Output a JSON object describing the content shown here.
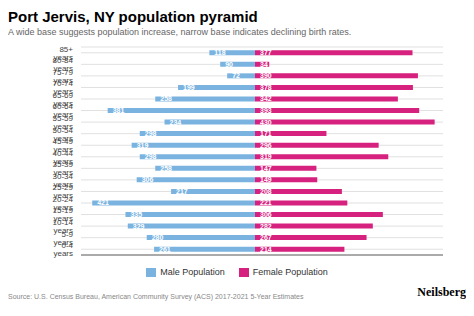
{
  "chart_data": {
    "type": "bar",
    "orientation": "horizontal",
    "title": "Port Jervis, NY population pyramid",
    "subtitle": "A wide base suggests population increase, narrow base indicates declining birth rates.",
    "annotations": [
      "Source: U.S. Census Bureau, American Community Survey (ACS) 2017-2021 5-Year Estimates",
      "Neilsberg"
    ],
    "categories": [
      "85+ years",
      "80-84 years",
      "75-79 years",
      "70-74 years",
      "65-69 years",
      "60-64 years",
      "55-59 years",
      "50-54 years",
      "45-49 years",
      "40-44 years",
      "35-39 years",
      "30-34 years",
      "25-29 years",
      "20-24 years",
      "15-19 years",
      "10-14 years",
      "5-9 years",
      "0-4 years"
    ],
    "series": [
      {
        "name": "Male Population",
        "color": "#7ab3e0",
        "values": [
          118,
          90,
          72,
          199,
          258,
          381,
          234,
          298,
          319,
          298,
          258,
          306,
          217,
          421,
          335,
          329,
          280,
          261
        ]
      },
      {
        "name": "Female Population",
        "color": "#d6217e",
        "values": [
          377,
          34,
          390,
          378,
          342,
          393,
          430,
          171,
          296,
          319,
          147,
          149,
          208,
          221,
          306,
          282,
          267,
          214
        ]
      }
    ],
    "xlim": [
      0,
      450
    ],
    "tick_labels": "y",
    "grid": true,
    "legend": "bottom",
    "data_labels": true
  }
}
